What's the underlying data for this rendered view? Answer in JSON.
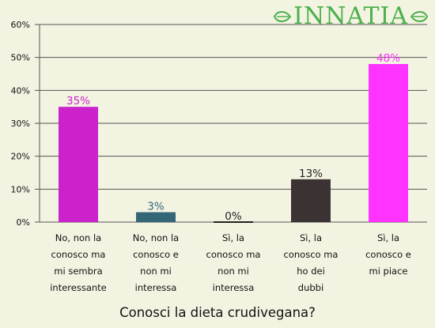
{
  "logo": {
    "text": "INNATIA",
    "color": "#4cb04c"
  },
  "chart_data": {
    "type": "bar",
    "title": "Conosci la dieta crudivegana?",
    "categories": [
      [
        "No, non la",
        "conosco ma",
        "mi sembra",
        "interessante"
      ],
      [
        "No, non la",
        "conosco e",
        "non mi",
        "interessa"
      ],
      [
        "Sì, la",
        "conosco ma",
        "non mi",
        "interessa"
      ],
      [
        "Sì, la",
        "conosco ma",
        "ho dei",
        "dubbi"
      ],
      [
        "Sì, la",
        "conosco e",
        "mi piace"
      ]
    ],
    "values": [
      35,
      3,
      0,
      13,
      48
    ],
    "value_labels": [
      "35%",
      "3%",
      "0%",
      "13%",
      "48%"
    ],
    "bar_colors": [
      "#cc22cc",
      "#336677",
      "#222222",
      "#3b3333",
      "#ff33ff"
    ],
    "label_colors": [
      "#cc22cc",
      "#336677",
      "#222222",
      "#222222",
      "#ff33ff"
    ],
    "yticks": [
      "0%",
      "10%",
      "20%",
      "30%",
      "40%",
      "50%",
      "60%"
    ],
    "ylim": [
      0,
      60
    ],
    "grid": true
  }
}
